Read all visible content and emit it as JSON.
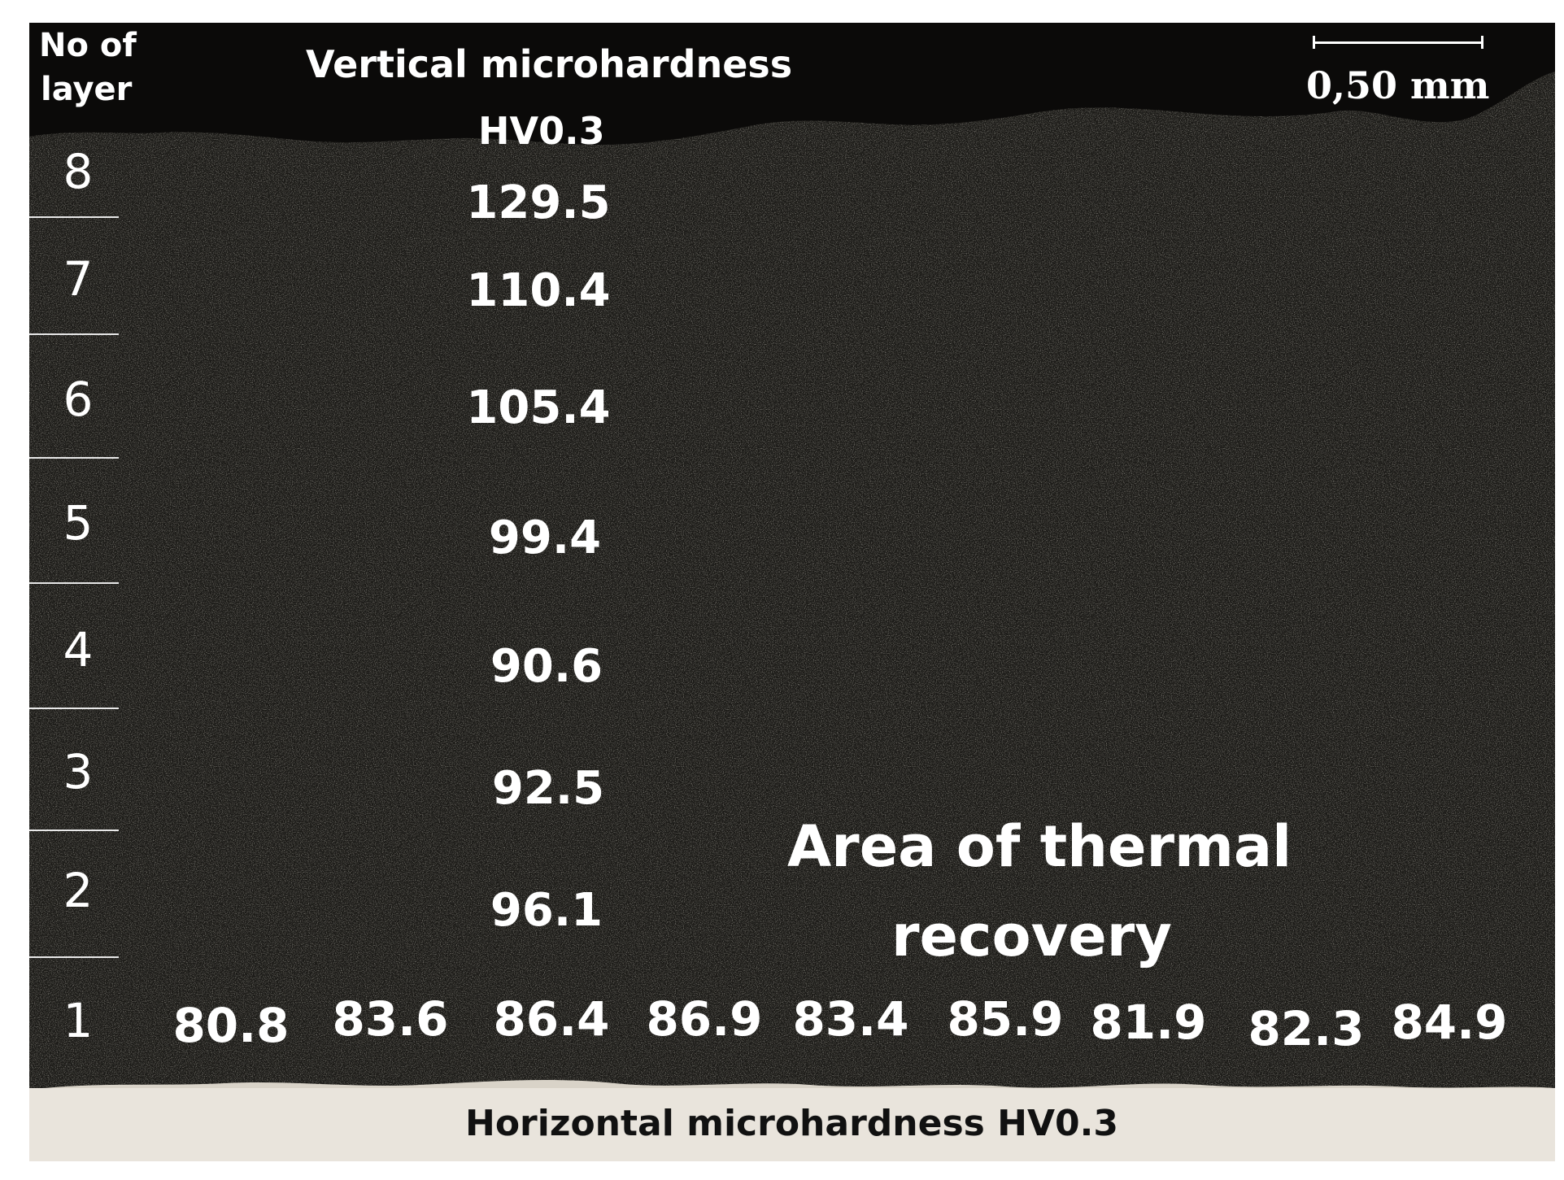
{
  "layer_header": {
    "line1": "No of",
    "line2": "layer"
  },
  "vertical_header": {
    "line1": "Vertical microhardness",
    "line2": "HV0.3"
  },
  "scale_bar": {
    "label": "0,50 mm"
  },
  "layers": [
    {
      "number": "8",
      "vertical_value": "129.5"
    },
    {
      "number": "7",
      "vertical_value": "110.4"
    },
    {
      "number": "6",
      "vertical_value": "105.4"
    },
    {
      "number": "5",
      "vertical_value": "99.4"
    },
    {
      "number": "4",
      "vertical_value": "90.6"
    },
    {
      "number": "3",
      "vertical_value": "92.5"
    },
    {
      "number": "2",
      "vertical_value": "96.1"
    },
    {
      "number": "1"
    }
  ],
  "horizontal_values": [
    "80.8",
    "83.6",
    "86.4",
    "86.9",
    "83.4",
    "85.9",
    "81.9",
    "82.3",
    "84.9"
  ],
  "thermal_area": {
    "line1": "Area of thermal",
    "line2": "recovery"
  },
  "horizontal_caption": "Horizontal microhardness HV0.3",
  "colors": {
    "deposit": "#181714",
    "substrate": "#e9e4dc",
    "text": "#ffffff",
    "caption": "#111111"
  }
}
